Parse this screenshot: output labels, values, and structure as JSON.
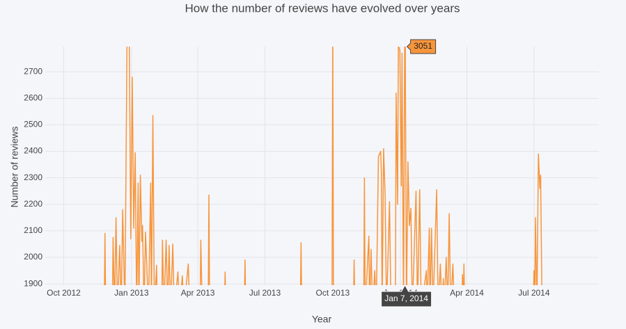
{
  "chart_data": {
    "type": "line",
    "title": "How the number of reviews have evolved over years",
    "x_label": "Year",
    "y_label": "Number of reviews",
    "x": [
      "2012-11-25",
      "2012-11-26",
      "2012-11-27",
      "2012-12-06",
      "2012-12-07",
      "2012-12-09",
      "2012-12-11",
      "2012-12-13",
      "2012-12-16",
      "2012-12-18",
      "2012-12-20",
      "2012-12-23",
      "2012-12-26",
      "2012-12-29",
      "2012-12-31",
      "2013-01-02",
      "2013-01-04",
      "2013-01-06",
      "2013-01-08",
      "2013-01-10",
      "2013-01-11",
      "2013-01-13",
      "2013-01-15",
      "2013-01-16",
      "2013-01-18",
      "2013-01-20",
      "2013-01-24",
      "2013-01-27",
      "2013-01-28",
      "2013-01-30",
      "2013-02-01",
      "2013-02-04",
      "2013-02-05",
      "2013-02-11",
      "2013-02-12",
      "2013-02-14",
      "2013-02-17",
      "2013-02-19",
      "2013-02-21",
      "2013-02-23",
      "2013-02-26",
      "2013-02-28",
      "2013-03-05",
      "2013-03-07",
      "2013-03-11",
      "2013-03-13",
      "2013-03-19",
      "2013-03-21",
      "2013-04-04",
      "2013-04-05",
      "2013-04-07",
      "2013-04-15",
      "2013-04-16",
      "2013-04-17",
      "2013-05-07",
      "2013-05-08",
      "2013-05-09",
      "2013-06-03",
      "2013-06-04",
      "2013-06-05",
      "2013-08-18",
      "2013-08-19",
      "2013-08-20",
      "2013-09-30",
      "2013-10-01",
      "2013-10-02",
      "2013-10-29",
      "2013-10-30",
      "2013-10-31",
      "2013-11-12",
      "2013-11-13",
      "2013-11-14",
      "2013-11-19",
      "2013-11-20",
      "2013-11-22",
      "2013-11-24",
      "2013-11-27",
      "2013-11-29",
      "2013-12-02",
      "2013-12-05",
      "2013-12-06",
      "2013-12-07",
      "2013-12-09",
      "2013-12-11",
      "2013-12-13",
      "2013-12-17",
      "2013-12-19",
      "2013-12-25",
      "2013-12-26",
      "2013-12-28",
      "2013-12-29",
      "2013-12-31",
      "2014-01-02",
      "2014-01-03",
      "2014-01-05",
      "2014-01-07",
      "2014-01-09",
      "2014-01-11",
      "2014-01-13",
      "2014-01-15",
      "2014-01-17",
      "2014-01-22",
      "2014-01-24",
      "2014-01-27",
      "2014-01-29",
      "2014-02-05",
      "2014-02-06",
      "2014-02-09",
      "2014-02-10",
      "2014-02-12",
      "2014-02-14",
      "2014-02-19",
      "2014-02-21",
      "2014-02-24",
      "2014-02-26",
      "2014-02-28",
      "2014-03-01",
      "2014-03-04",
      "2014-03-06",
      "2014-03-08",
      "2014-03-10",
      "2014-03-13",
      "2014-03-15",
      "2014-03-25",
      "2014-03-26",
      "2014-03-27",
      "2014-03-28",
      "2014-03-29",
      "2014-06-30",
      "2014-07-01",
      "2014-07-02",
      "2014-07-03",
      "2014-07-05",
      "2014-07-07",
      "2014-07-09",
      "2014-07-10",
      "2014-07-12"
    ],
    "series": [
      {
        "name": "reviews",
        "color": "#f7953b",
        "values": [
          1800,
          2090,
          1800,
          1800,
          2075,
          1800,
          2150,
          1800,
          2045,
          1800,
          2180,
          1800,
          2850,
          2800,
          2070,
          2680,
          2110,
          2395,
          1800,
          2280,
          1800,
          2310,
          2060,
          2120,
          1800,
          2095,
          1800,
          2280,
          1800,
          2535,
          1800,
          1970,
          1800,
          1800,
          2065,
          1800,
          2065,
          1800,
          2045,
          1800,
          2050,
          1800,
          1945,
          1800,
          1930,
          1800,
          1975,
          1800,
          1800,
          2065,
          1800,
          1800,
          2235,
          1800,
          1800,
          1945,
          1800,
          1800,
          1990,
          1800,
          1800,
          2055,
          1800,
          1800,
          2900,
          1800,
          1800,
          1990,
          1800,
          1800,
          2300,
          1800,
          2080,
          1800,
          2030,
          1800,
          1950,
          1800,
          2380,
          2400,
          2320,
          1800,
          2410,
          2240,
          1800,
          2210,
          1800,
          1800,
          2620,
          2200,
          2800,
          2780,
          2270,
          2770,
          1800,
          3051,
          1800,
          2360,
          2120,
          2185,
          1800,
          2250,
          1800,
          2255,
          1800,
          1950,
          1800,
          2110,
          1800,
          2110,
          1800,
          2255,
          1800,
          1975,
          1800,
          1920,
          1800,
          2000,
          1800,
          2165,
          1800,
          1975,
          1800,
          1800,
          1935,
          1800,
          1975,
          1800,
          1800,
          1950,
          1800,
          2150,
          1800,
          2390,
          2260,
          2310,
          1800
        ]
      }
    ],
    "xlim": [
      "2012-09-06",
      "2014-09-27"
    ],
    "xticks": [
      {
        "value": "2012-10-01",
        "label": "Oct 2012"
      },
      {
        "value": "2013-01-01",
        "label": "Jan 2013"
      },
      {
        "value": "2013-04-01",
        "label": "Apr 2013"
      },
      {
        "value": "2013-07-01",
        "label": "Jul 2013"
      },
      {
        "value": "2013-10-01",
        "label": "Oct 2013"
      },
      {
        "value": "2014-01-01",
        "label": "Jan 2014"
      },
      {
        "value": "2014-04-01",
        "label": "Apr 2014"
      },
      {
        "value": "2014-07-01",
        "label": "Jul 2014"
      }
    ],
    "ylim": [
      1895,
      2795
    ],
    "yticks": [
      1900,
      2000,
      2100,
      2200,
      2300,
      2400,
      2500,
      2600,
      2700
    ],
    "grid": true,
    "hover": {
      "x": "2014-01-07",
      "label": "Jan 7, 2014"
    }
  }
}
